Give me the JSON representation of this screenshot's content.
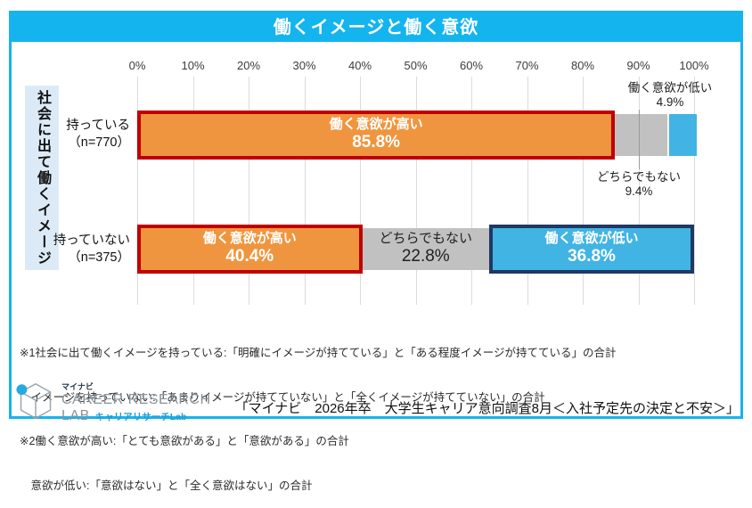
{
  "title": "働くイメージと働く意欲",
  "axis": {
    "ticks": [
      "0%",
      "10%",
      "20%",
      "30%",
      "40%",
      "50%",
      "60%",
      "70%",
      "80%",
      "90%",
      "100%"
    ]
  },
  "group_label": "社会に出て働くイメージ",
  "chart_data": {
    "type": "bar",
    "orientation": "horizontal",
    "stacked": true,
    "title": "働くイメージと働く意欲",
    "xlabel": "",
    "ylabel": "社会に出て働くイメージ",
    "xlim": [
      0,
      100
    ],
    "grid": true,
    "categories": [
      "持っている（n=770）",
      "持っていない（n=375）"
    ],
    "series": [
      {
        "name": "働く意欲が高い",
        "values": [
          85.8,
          40.4
        ],
        "color": "#F0953F",
        "border_color": "#C00000"
      },
      {
        "name": "どちらでもない",
        "values": [
          9.4,
          22.8
        ],
        "color": "#C1C1C1",
        "border_color": null
      },
      {
        "name": "働く意欲が低い",
        "values": [
          4.9,
          36.8
        ],
        "color": "#41B4E4",
        "border_color": "#1F3864"
      }
    ]
  },
  "rows": {
    "row1": {
      "cat_line1": "持っている",
      "cat_line2": "（n=770）",
      "high_label": "働く意欲が高い",
      "high_pct": "85.8%",
      "callout_low_line1": "働く意欲が低い",
      "callout_low_line2": "4.9%",
      "callout_neutral_line1": "どちらでもない",
      "callout_neutral_line2": "9.4%"
    },
    "row2": {
      "cat_line1": "持っていない",
      "cat_line2": "（n=375）",
      "high_label": "働く意欲が高い",
      "high_pct": "40.4%",
      "neutral_label": "どちらでもない",
      "neutral_pct": "22.8%",
      "low_label": "働く意欲が低い",
      "low_pct": "36.8%"
    }
  },
  "footnotes": [
    "※1社会に出て働くイメージを持っている:「明確にイメージが持てている」と「ある程度イメージが持てている」の合計",
    "　イメージを持っていない:「あまりイメージが持てていない」と「全くイメージが持てていない」の合計",
    "※2働く意欲が高い:「とても意欲がある」と「意欲がある」の合計",
    "　意欲が低い:「意欲はない」と「全く意欲はない」の合計"
  ],
  "logo": {
    "brand_small": "マイナビ",
    "line1": "CAREER RESEARCH",
    "line2": "LAB",
    "jp": "キャリアリサーチLab"
  },
  "source": "「マイナビ　2026年卒　大学生キャリア意向調査8月＜入社予定先の決定と不安＞」",
  "colors": {
    "accent_cyan": "#14B4EE",
    "high_fill": "#F0953F",
    "high_border": "#C00000",
    "neutral_fill": "#C1C1C1",
    "low_fill": "#41B4E4",
    "low_border": "#1F3864",
    "band_fill": "#DCEAF7"
  }
}
